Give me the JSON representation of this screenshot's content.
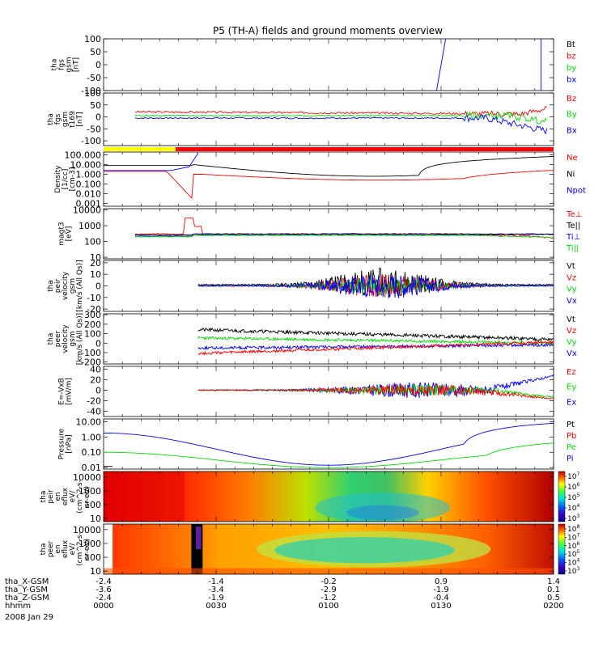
{
  "title": "P5 (TH-A) fields and ground moments overview",
  "colors": {
    "black": "#000000",
    "red": "#ff0000",
    "green": "#00dd00",
    "blue": "#0000ff",
    "yellow": "#ffff00"
  },
  "time_axis": {
    "range": [
      "0000",
      "0200"
    ],
    "rows": [
      {
        "name": "tha_X-GSM",
        "values": [
          "-2.4",
          "-1.4",
          "-0.2",
          "0.9",
          "1.4"
        ]
      },
      {
        "name": "tha_Y-GSM",
        "values": [
          "-3.6",
          "-3.4",
          "-2.9",
          "-1.9",
          "0.1"
        ]
      },
      {
        "name": "tha_Z-GSM",
        "values": [
          "-2.4",
          "-1.9",
          "-1.2",
          "-0.4",
          "0.5"
        ]
      },
      {
        "name": "hhmm",
        "values": [
          "0000",
          "0030",
          "0100",
          "0130",
          "0200"
        ]
      }
    ],
    "date": "2008 Jan 29"
  },
  "chart_data": [
    {
      "type": "line",
      "id": "fgs",
      "ylabel": [
        "tha",
        "fgs",
        "gsm",
        "[nT]"
      ],
      "yticks": [
        "100",
        "50",
        "0",
        "-50",
        "-100"
      ],
      "ylim": [
        -100,
        100
      ],
      "legend": [
        {
          "label": "Bt",
          "color": "#000000"
        },
        {
          "label": "bz",
          "color": "#ff0000"
        },
        {
          "label": "by",
          "color": "#00dd00"
        },
        {
          "label": "bx",
          "color": "#0000ff"
        }
      ]
    },
    {
      "type": "line",
      "id": "fgs_t169",
      "ylabel": [
        "tha",
        "fgs",
        "gsm",
        "t169",
        "[nT]"
      ],
      "yticks": [
        "100",
        "50",
        "0",
        "-50",
        "-100"
      ],
      "ylim": [
        -120,
        100
      ],
      "legend": [
        {
          "label": "Bz",
          "color": "#ff0000"
        },
        {
          "label": "By",
          "color": "#00dd00"
        },
        {
          "label": "Bx",
          "color": "#0000ff"
        }
      ]
    },
    {
      "type": "line",
      "id": "density",
      "ylabel": [
        "Density",
        "[1/cc]",
        "[cm-3]"
      ],
      "log": true,
      "yticks": [
        "100.000",
        "10.000",
        "1.000",
        "0.100",
        "0.010",
        "0.001"
      ],
      "ylim": [
        0.0005,
        200
      ],
      "legend": [
        {
          "label": "Ne",
          "color": "#ff0000"
        },
        {
          "label": "Ni",
          "color": "#000000"
        },
        {
          "label": "Npot",
          "color": "#0000ff"
        }
      ]
    },
    {
      "type": "line",
      "id": "temperature",
      "ylabel": [
        "magt3",
        "[eV]"
      ],
      "log": true,
      "yticks": [
        "10000",
        "1000",
        "100",
        "10"
      ],
      "ylim": [
        8,
        12000
      ],
      "legend": [
        {
          "label": "Te⊥",
          "color": "#ff0000"
        },
        {
          "label": "Te||",
          "color": "#000000"
        },
        {
          "label": "Ti⊥",
          "color": "#0000ff"
        },
        {
          "label": "Ti||",
          "color": "#00dd00"
        }
      ]
    },
    {
      "type": "line",
      "id": "peir_vel",
      "ylabel": [
        "tha",
        "peir",
        "velocity",
        "gsm",
        "[km/s (All Qs)]"
      ],
      "yticks": [
        "20",
        "10",
        "0",
        "-10",
        "-20"
      ],
      "ylim": [
        -22,
        22
      ],
      "legend": [
        {
          "label": "Vt",
          "color": "#000000"
        },
        {
          "label": "Vz",
          "color": "#ff0000"
        },
        {
          "label": "Vy",
          "color": "#00dd00"
        },
        {
          "label": "Vx",
          "color": "#0000ff"
        }
      ]
    },
    {
      "type": "line",
      "id": "peer_vel",
      "ylabel": [
        "tha",
        "peer",
        "velocity",
        "gsm",
        "[km/s (All Qs)]"
      ],
      "yticks": [
        "300",
        "200",
        "100",
        "0",
        "-100",
        "-200"
      ],
      "ylim": [
        -220,
        310
      ],
      "legend": [
        {
          "label": "Vt",
          "color": "#000000"
        },
        {
          "label": "Vz",
          "color": "#ff0000"
        },
        {
          "label": "Vy",
          "color": "#00dd00"
        },
        {
          "label": "Vx",
          "color": "#0000ff"
        }
      ]
    },
    {
      "type": "line",
      "id": "efield",
      "ylabel": [
        "E=-VxB",
        "[mV/m]"
      ],
      "yticks": [
        "40",
        "20",
        "0",
        "-20",
        "-40"
      ],
      "ylim": [
        -50,
        45
      ],
      "legend": [
        {
          "label": "Ez",
          "color": "#ff0000"
        },
        {
          "label": "Ey",
          "color": "#00dd00"
        },
        {
          "label": "Ex",
          "color": "#0000ff"
        }
      ]
    },
    {
      "type": "line",
      "id": "pressure",
      "ylabel": [
        "Pressure",
        "[nPa]"
      ],
      "log": true,
      "yticks": [
        "10.00",
        "1.00",
        "0.10",
        "0.01"
      ],
      "ylim": [
        0.008,
        15
      ],
      "legend": [
        {
          "label": "Pt",
          "color": "#000000"
        },
        {
          "label": "Pb",
          "color": "#ff0000"
        },
        {
          "label": "Pe",
          "color": "#00dd00"
        },
        {
          "label": "Pi",
          "color": "#0000ff"
        }
      ]
    },
    {
      "type": "heatmap",
      "id": "peir_eflux",
      "ylabel": [
        "tha",
        "peir",
        "en",
        "eflux",
        "eV/",
        "(cm^2-s-",
        "sr-eV)"
      ],
      "log": true,
      "yticks": [
        "10000",
        "1000",
        "100",
        "10"
      ],
      "ylim": [
        6,
        25000
      ],
      "colorbar": {
        "labels": [
          "10^7",
          "10^6",
          "10^5",
          "10^4",
          "10^3"
        ]
      }
    },
    {
      "type": "heatmap",
      "id": "peer_eflux",
      "ylabel": [
        "tha",
        "peer",
        "en",
        "eflux",
        "eV/",
        "(cm^2-s-",
        "sr-eV)"
      ],
      "log": true,
      "yticks": [
        "10000",
        "1000",
        "100",
        "10"
      ],
      "ylim": [
        6,
        25000
      ],
      "colorbar": {
        "labels": [
          "10^8",
          "10^7",
          "10^6",
          "10^5",
          "10^4",
          "10^3"
        ]
      }
    }
  ]
}
